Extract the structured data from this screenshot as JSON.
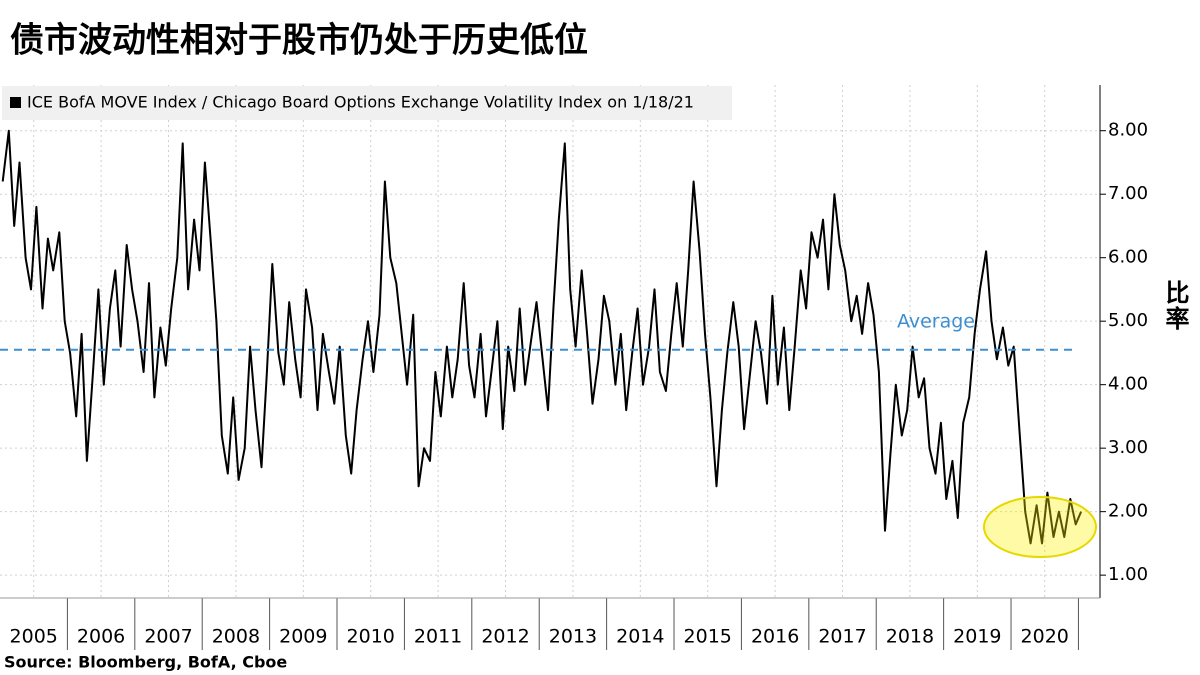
{
  "chart_data": {
    "type": "line",
    "title": "债市波动性相对于股市仍处于历史低位",
    "source": "Source:  Bloomberg, BofA, Cboe",
    "y_label": "比率",
    "average": {
      "value": 4.55,
      "label": "Average",
      "color": "#3d8fd1"
    },
    "x": [
      2005.04,
      2005.13,
      2005.21,
      2005.29,
      2005.38,
      2005.46,
      2005.54,
      2005.63,
      2005.71,
      2005.79,
      2005.88,
      2005.96,
      2006.04,
      2006.13,
      2006.21,
      2006.29,
      2006.38,
      2006.46,
      2006.54,
      2006.63,
      2006.71,
      2006.79,
      2006.88,
      2006.96,
      2007.04,
      2007.13,
      2007.21,
      2007.29,
      2007.38,
      2007.46,
      2007.54,
      2007.63,
      2007.71,
      2007.79,
      2007.88,
      2007.96,
      2008.04,
      2008.13,
      2008.21,
      2008.29,
      2008.38,
      2008.46,
      2008.54,
      2008.63,
      2008.71,
      2008.79,
      2008.88,
      2008.96,
      2009.04,
      2009.13,
      2009.21,
      2009.29,
      2009.38,
      2009.46,
      2009.54,
      2009.63,
      2009.71,
      2009.79,
      2009.88,
      2009.96,
      2010.04,
      2010.13,
      2010.21,
      2010.29,
      2010.38,
      2010.46,
      2010.54,
      2010.63,
      2010.71,
      2010.79,
      2010.88,
      2010.96,
      2011.04,
      2011.13,
      2011.21,
      2011.29,
      2011.38,
      2011.46,
      2011.54,
      2011.63,
      2011.71,
      2011.79,
      2011.88,
      2011.96,
      2012.04,
      2012.13,
      2012.21,
      2012.29,
      2012.38,
      2012.46,
      2012.54,
      2012.63,
      2012.71,
      2012.79,
      2012.88,
      2012.96,
      2013.04,
      2013.13,
      2013.21,
      2013.29,
      2013.38,
      2013.46,
      2013.54,
      2013.63,
      2013.71,
      2013.79,
      2013.88,
      2013.96,
      2014.04,
      2014.13,
      2014.21,
      2014.29,
      2014.38,
      2014.46,
      2014.54,
      2014.63,
      2014.71,
      2014.79,
      2014.88,
      2014.96,
      2015.04,
      2015.13,
      2015.21,
      2015.29,
      2015.38,
      2015.46,
      2015.54,
      2015.63,
      2015.71,
      2015.79,
      2015.88,
      2015.96,
      2016.04,
      2016.13,
      2016.21,
      2016.29,
      2016.38,
      2016.46,
      2016.54,
      2016.63,
      2016.71,
      2016.79,
      2016.88,
      2016.96,
      2017.04,
      2017.13,
      2017.21,
      2017.29,
      2017.38,
      2017.46,
      2017.54,
      2017.63,
      2017.71,
      2017.79,
      2017.88,
      2017.96,
      2018.04,
      2018.13,
      2018.21,
      2018.29,
      2018.38,
      2018.46,
      2018.54,
      2018.63,
      2018.71,
      2018.79,
      2018.88,
      2018.96,
      2019.04,
      2019.13,
      2019.21,
      2019.29,
      2019.38,
      2019.46,
      2019.54,
      2019.63,
      2019.71,
      2019.79,
      2019.88,
      2019.96,
      2020.04,
      2020.13,
      2020.21,
      2020.29,
      2020.38,
      2020.46,
      2020.54,
      2020.63,
      2020.71,
      2020.79,
      2020.88,
      2020.96,
      2021.04
    ],
    "series": [
      {
        "name": "ICE BofA MOVE Index / Chicago Board Options Exchange Volatility Index on 1/18/21",
        "color": "#000000",
        "values": [
          7.2,
          8.0,
          6.5,
          7.5,
          6.0,
          5.5,
          6.8,
          5.2,
          6.3,
          5.8,
          6.4,
          5.0,
          4.5,
          3.5,
          4.8,
          2.8,
          4.2,
          5.5,
          4.0,
          5.2,
          5.8,
          4.6,
          6.2,
          5.5,
          5.0,
          4.2,
          5.6,
          3.8,
          4.9,
          4.3,
          5.2,
          6.0,
          7.8,
          5.5,
          6.6,
          5.8,
          7.5,
          6.2,
          5.0,
          3.2,
          2.6,
          3.8,
          2.5,
          3.0,
          4.6,
          3.6,
          2.7,
          4.2,
          5.9,
          4.5,
          4.0,
          5.3,
          4.4,
          3.8,
          5.5,
          4.9,
          3.6,
          4.8,
          4.2,
          3.7,
          4.6,
          3.2,
          2.6,
          3.6,
          4.4,
          5.0,
          4.2,
          5.1,
          7.2,
          6.0,
          5.6,
          4.8,
          4.0,
          5.1,
          2.4,
          3.0,
          2.8,
          4.2,
          3.5,
          4.6,
          3.8,
          4.4,
          5.6,
          4.3,
          3.8,
          4.8,
          3.5,
          4.2,
          5.0,
          3.3,
          4.6,
          3.9,
          5.2,
          4.0,
          4.7,
          5.3,
          4.5,
          3.6,
          5.2,
          6.6,
          7.8,
          5.5,
          4.6,
          5.8,
          4.8,
          3.7,
          4.4,
          5.4,
          5.0,
          4.0,
          4.8,
          3.6,
          4.5,
          5.2,
          4.0,
          4.6,
          5.5,
          4.2,
          3.9,
          4.8,
          5.6,
          4.6,
          5.8,
          7.2,
          6.1,
          4.8,
          3.8,
          2.4,
          3.6,
          4.5,
          5.3,
          4.6,
          3.3,
          4.2,
          5.0,
          4.5,
          3.7,
          5.4,
          4.0,
          4.9,
          3.6,
          4.6,
          5.8,
          5.2,
          6.4,
          6.0,
          6.6,
          5.5,
          7.0,
          6.2,
          5.8,
          5.0,
          5.4,
          4.8,
          5.6,
          5.1,
          4.2,
          1.7,
          2.9,
          4.0,
          3.2,
          3.6,
          4.6,
          3.8,
          4.1,
          3.0,
          2.6,
          3.4,
          2.2,
          2.8,
          1.9,
          3.4,
          3.8,
          4.8,
          5.5,
          6.1,
          5.0,
          4.4,
          4.9,
          4.3,
          4.6,
          3.2,
          2.0,
          1.5,
          2.1,
          1.5,
          2.3,
          1.6,
          2.0,
          1.6,
          2.2,
          1.8,
          2.0
        ]
      }
    ],
    "xlim": [
      2005.0,
      2021.32
    ],
    "xticks": [
      {
        "value": 2005.5,
        "label": "2005"
      },
      {
        "value": 2006.5,
        "label": "2006"
      },
      {
        "value": 2007.5,
        "label": "2007"
      },
      {
        "value": 2008.5,
        "label": "2008"
      },
      {
        "value": 2009.5,
        "label": "2009"
      },
      {
        "value": 2010.5,
        "label": "2010"
      },
      {
        "value": 2011.5,
        "label": "2011"
      },
      {
        "value": 2012.5,
        "label": "2012"
      },
      {
        "value": 2013.5,
        "label": "2013"
      },
      {
        "value": 2014.5,
        "label": "2014"
      },
      {
        "value": 2015.5,
        "label": "2015"
      },
      {
        "value": 2016.5,
        "label": "2016"
      },
      {
        "value": 2017.5,
        "label": "2017"
      },
      {
        "value": 2018.5,
        "label": "2018"
      },
      {
        "value": 2019.5,
        "label": "2019"
      },
      {
        "value": 2020.5,
        "label": "2020"
      }
    ],
    "ylim": [
      0.64,
      8.72
    ],
    "yticks": [
      {
        "value": 1,
        "label": "1.00"
      },
      {
        "value": 2,
        "label": "2.00"
      },
      {
        "value": 3,
        "label": "3.00"
      },
      {
        "value": 4,
        "label": "4.00"
      },
      {
        "value": 5,
        "label": "5.00"
      },
      {
        "value": 6,
        "label": "6.00"
      },
      {
        "value": 7,
        "label": "7.00"
      },
      {
        "value": 8,
        "label": "8.00"
      }
    ],
    "grid": true
  }
}
